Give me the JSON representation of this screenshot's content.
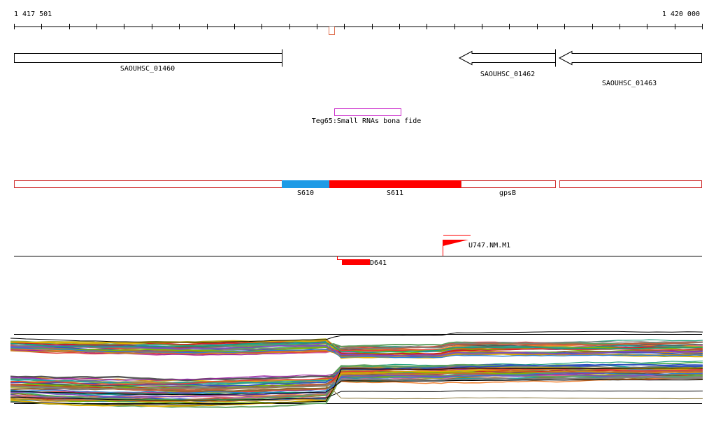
{
  "ruler": {
    "start_label": "1 417 501",
    "end_label": "1 420 000"
  },
  "genes": [
    {
      "name": "SAOUHSC_01460",
      "strand": "+"
    },
    {
      "name": "SAOUHSC_01462",
      "strand": "-"
    },
    {
      "name": "SAOUHSC_01463",
      "strand": "-"
    }
  ],
  "small_rna": {
    "label": "Teg65:Small RNAs bona fide",
    "color": "#cc33cc"
  },
  "segments": [
    {
      "name": "",
      "fill": "#ffffff"
    },
    {
      "name": "S610",
      "fill": "#1e9be6"
    },
    {
      "name": "S611",
      "fill": "#ff0000"
    },
    {
      "name": "gpsB",
      "fill": "#ffffff"
    },
    {
      "name": "",
      "fill": "#ffffff"
    }
  ],
  "features": {
    "upper": {
      "label": "U747.NM.M1",
      "color": "#ff0000"
    },
    "lower": {
      "label": "D641",
      "color": "#ff0000"
    }
  },
  "colors": {
    "ruler": "#000000",
    "ruler_marker": "#e07050",
    "segment_outline": "#d03030",
    "lane_line": "#000000"
  }
}
